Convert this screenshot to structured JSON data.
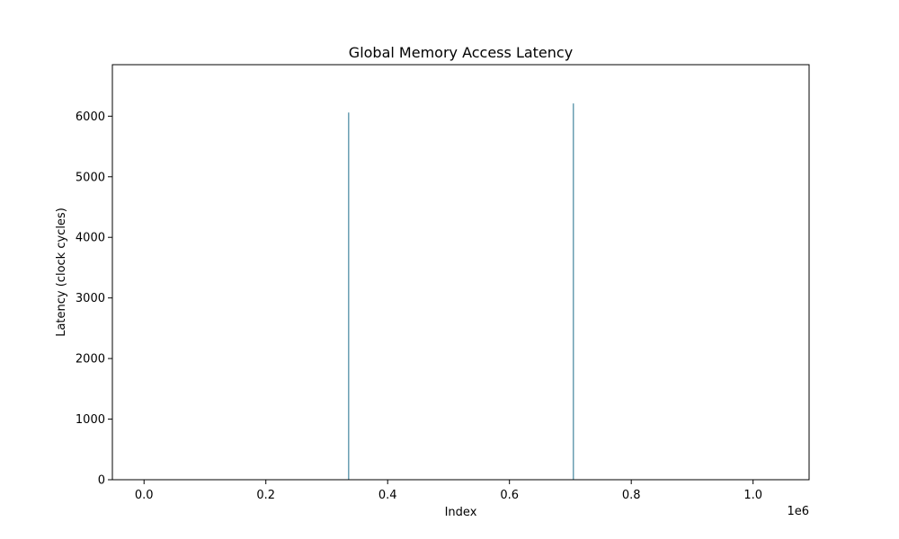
{
  "chart_data": {
    "type": "bar",
    "title": "Global Memory Access Latency",
    "xlabel": "Index",
    "ylabel": "Latency (clock cycles)",
    "x_offset_label": "1e6",
    "xlim": [
      -52000,
      1092000
    ],
    "ylim": [
      0,
      6850
    ],
    "x_ticks": [
      0,
      200000,
      400000,
      600000,
      800000,
      1000000
    ],
    "x_tick_labels": [
      "0.0",
      "0.2",
      "0.4",
      "0.6",
      "0.8",
      "1.0"
    ],
    "y_ticks": [
      0,
      1000,
      2000,
      3000,
      4000,
      5000,
      6000
    ],
    "y_tick_labels": [
      "0",
      "1000",
      "2000",
      "3000",
      "4000",
      "5000",
      "6000"
    ],
    "grid": false,
    "legend": "none",
    "colors": {
      "bar": "#1f6f8b",
      "axis": "#000000"
    },
    "series": [
      {
        "points": [
          {
            "x": 336000,
            "y": 6060
          },
          {
            "x": 705000,
            "y": 6210
          }
        ]
      }
    ]
  }
}
